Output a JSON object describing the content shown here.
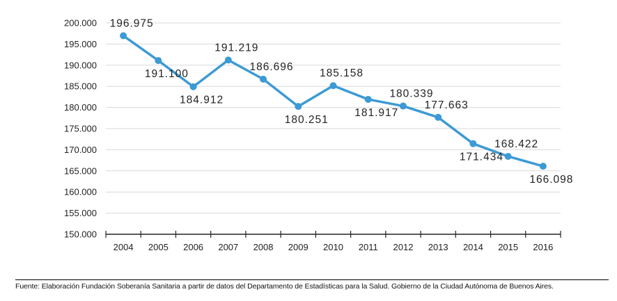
{
  "chart_data": {
    "type": "line",
    "title": "",
    "xlabel": "",
    "ylabel": "",
    "categories": [
      "2004",
      "2005",
      "2006",
      "2007",
      "2008",
      "2009",
      "2010",
      "2011",
      "2012",
      "2013",
      "2014",
      "2015",
      "2016"
    ],
    "series": [
      {
        "values": [
          196975,
          191100,
          184912,
          191219,
          186696,
          180251,
          185158,
          181917,
          180339,
          177663,
          171434,
          168422,
          166098
        ],
        "labels": [
          "196.975",
          "191.100",
          "184.912",
          "191.219",
          "186.696",
          "180.251",
          "185.158",
          "181.917",
          "180.339",
          "177.663",
          "171.434",
          "168.422",
          "166.098"
        ],
        "label_position": [
          "above",
          "below",
          "below",
          "above",
          "above",
          "below",
          "above",
          "below",
          "above",
          "above",
          "below",
          "above",
          "below"
        ],
        "color": "#3c9ad5"
      }
    ],
    "ylim": [
      150000,
      200000
    ],
    "yticks": [
      150000,
      155000,
      160000,
      165000,
      170000,
      175000,
      180000,
      185000,
      190000,
      195000,
      200000
    ],
    "ytick_labels": [
      "150.000",
      "155.000",
      "160.000",
      "165.000",
      "170.000",
      "175.000",
      "180.000",
      "185.000",
      "190.000",
      "195.000",
      "200.000"
    ],
    "grid": true,
    "legend": "none"
  },
  "source": "Fuente: Elaboración Fundación Soberanía Sanitaria a partir de datos del Departamento de Estadísticas para la Salud. Gobierno de la Ciudad Autónoma de Buenos Aires."
}
